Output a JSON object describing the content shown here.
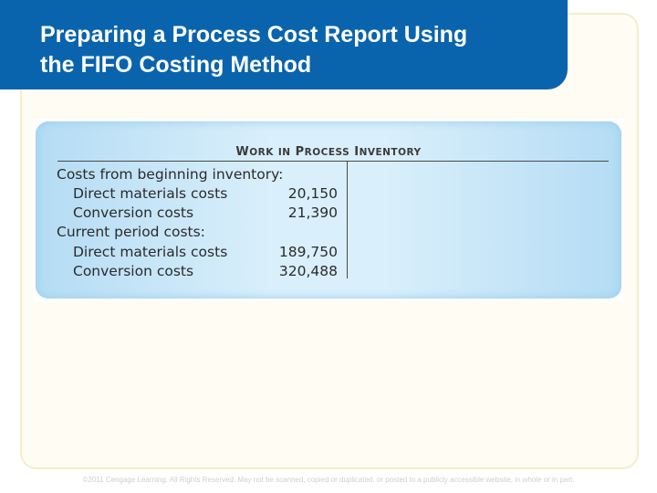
{
  "slide": {
    "title_line1": "Preparing a Process Cost Report Using",
    "title_line2": "the FIFO Costing Method"
  },
  "account": {
    "title_W": "W",
    "title_ork": "ORK",
    "title_in": "IN",
    "title_P": "P",
    "title_rocess": "ROCESS",
    "title_I": "I",
    "title_nventory": "NVENTORY",
    "rows": [
      {
        "label": "Costs from beginning inventory:",
        "amount": ""
      },
      {
        "label": "Direct materials costs",
        "amount": "20,150"
      },
      {
        "label": "Conversion costs",
        "amount": "21,390"
      },
      {
        "label": "Current period costs:",
        "amount": ""
      },
      {
        "label": "Direct materials costs",
        "amount": "189,750"
      },
      {
        "label": "Conversion costs",
        "amount": "320,488"
      }
    ]
  },
  "footer": {
    "copyright": "©2011 Cengage Learning. All Rights Reserved. May not be scanned, copied or duplicated, or posted to a publicly accessible website, in whole or in part."
  }
}
